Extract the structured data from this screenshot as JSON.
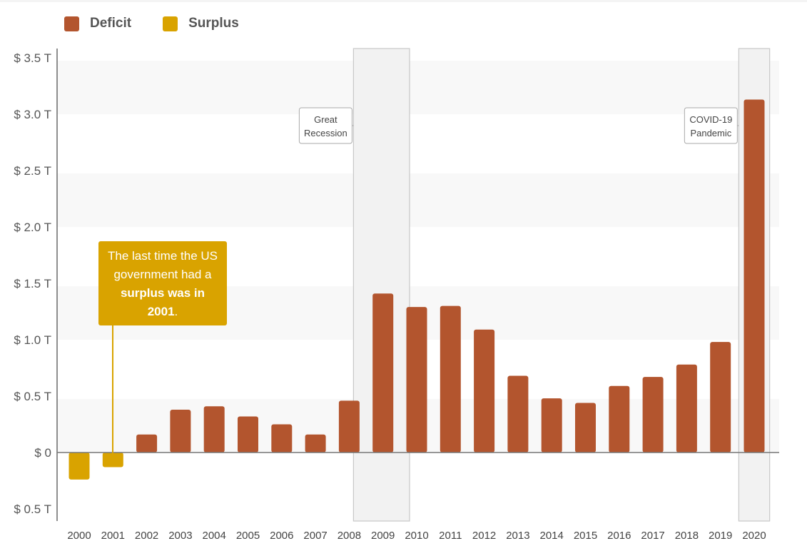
{
  "legend": [
    {
      "label": "Deficit",
      "color": "#b3552e"
    },
    {
      "label": "Surplus",
      "color": "#d9a300"
    }
  ],
  "callout": {
    "line1": "The last time the US government had a ",
    "bold": "surplus was in 2001",
    "end": "."
  },
  "chart_data": {
    "type": "bar",
    "title": "",
    "xlabel": "",
    "ylabel": "",
    "categories": [
      "2000",
      "2001",
      "2002",
      "2003",
      "2004",
      "2005",
      "2006",
      "2007",
      "2008",
      "2009",
      "2010",
      "2011",
      "2012",
      "2013",
      "2014",
      "2015",
      "2016",
      "2017",
      "2018",
      "2019",
      "2020"
    ],
    "values": [
      -0.24,
      -0.13,
      0.16,
      0.38,
      0.41,
      0.32,
      0.25,
      0.16,
      0.46,
      1.41,
      1.29,
      1.3,
      1.09,
      0.68,
      0.48,
      0.44,
      0.59,
      0.67,
      0.78,
      0.98,
      3.13
    ],
    "series_types": [
      "surplus",
      "surplus",
      "deficit",
      "deficit",
      "deficit",
      "deficit",
      "deficit",
      "deficit",
      "deficit",
      "deficit",
      "deficit",
      "deficit",
      "deficit",
      "deficit",
      "deficit",
      "deficit",
      "deficit",
      "deficit",
      "deficit",
      "deficit",
      "deficit"
    ],
    "colors": {
      "deficit": "#b3552e",
      "surplus": "#d9a300"
    },
    "ylim": [
      -0.5,
      3.5
    ],
    "yticks": [
      {
        "value": 3.5,
        "label": "$ 3.5 T"
      },
      {
        "value": 3.0,
        "label": "$ 3.0 T"
      },
      {
        "value": 2.5,
        "label": "$ 2.5 T"
      },
      {
        "value": 2.0,
        "label": "$ 2.0 T"
      },
      {
        "value": 1.5,
        "label": "$ 1.5 T"
      },
      {
        "value": 1.0,
        "label": "$ 1.0 T"
      },
      {
        "value": 0.5,
        "label": "$ 0.5 T"
      },
      {
        "value": 0,
        "label": "$ 0"
      },
      {
        "value": -0.5,
        "label": "$ 0.5 T"
      }
    ],
    "grid": "alternating bands",
    "legend_position": "top-left",
    "shaded_periods": [
      {
        "label": "Great Recession",
        "label_lines": [
          "Great",
          "Recession"
        ],
        "from": "2008",
        "to": "2010",
        "label_side": "left"
      },
      {
        "label": "COVID-19 Pandemic",
        "label_lines": [
          "COVID-19",
          "Pandemic"
        ],
        "from": "2020",
        "to": "2020",
        "label_side": "left"
      }
    ]
  }
}
